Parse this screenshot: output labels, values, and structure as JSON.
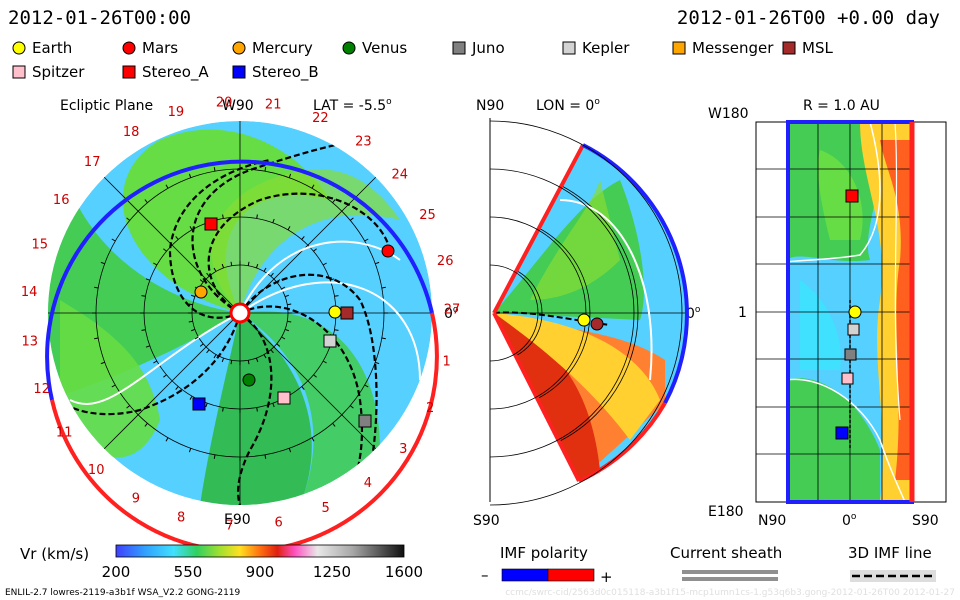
{
  "header": {
    "date_left": "2012-01-26T00:00",
    "date_right": "2012-01-26T00 +0.00 day"
  },
  "legend": [
    {
      "label": "Earth",
      "shape": "circle",
      "color": "#ffff00"
    },
    {
      "label": "Mars",
      "shape": "circle",
      "color": "#ff0000"
    },
    {
      "label": "Mercury",
      "shape": "circle",
      "color": "#ffa500"
    },
    {
      "label": "Venus",
      "shape": "circle",
      "color": "#008000"
    },
    {
      "label": "Juno",
      "shape": "square",
      "color": "#808080"
    },
    {
      "label": "Kepler",
      "shape": "square",
      "color": "#d3d3d3"
    },
    {
      "label": "Messenger",
      "shape": "square",
      "color": "#ffa500"
    },
    {
      "label": "MSL",
      "shape": "square",
      "color": "#a52a2a"
    },
    {
      "label": "Spitzer",
      "shape": "square",
      "color": "#ffc0cb"
    },
    {
      "label": "Stereo_A",
      "shape": "square",
      "color": "#ff0000"
    },
    {
      "label": "Stereo_B",
      "shape": "square",
      "color": "#0000ff"
    }
  ],
  "ecliptic": {
    "title": "Ecliptic Plane",
    "lat_label": "LAT = -5.5",
    "degree_mark": "o",
    "top_label": "W90",
    "bottom_label": "E90",
    "right_label": "0",
    "carrington_ticks": [
      "1",
      "2",
      "3",
      "4",
      "5",
      "6",
      "7",
      "8",
      "9",
      "10",
      "11",
      "12",
      "13",
      "14",
      "15",
      "16",
      "17",
      "18",
      "19",
      "20",
      "21",
      "22",
      "23",
      "24",
      "25",
      "26",
      "27"
    ]
  },
  "meridional": {
    "lon_label": "LON = 0",
    "degree_mark": "o",
    "top_label": "N90",
    "bottom_label": "S90",
    "right_label": "0"
  },
  "rectangular": {
    "r_label": "R = 1.0 AU",
    "top_left_label": "W180",
    "bottom_left_label": "E180",
    "mid_left_label": "1",
    "x_labels": [
      "N90",
      "0",
      "S90"
    ],
    "degree_mark": "o"
  },
  "colorbar": {
    "title": "Vr (km/s)",
    "ticks": [
      "200",
      "550",
      "900",
      "1250",
      "1600"
    ],
    "colors": [
      "#3030ff",
      "#30a0ff",
      "#40e0ff",
      "#30d060",
      "#a0e030",
      "#ffe020",
      "#ff8010",
      "#e02010",
      "#ff60c0",
      "#d0d0d0",
      "#a0a0a0",
      "#606060",
      "#202020"
    ]
  },
  "imf_polarity": {
    "title": "IMF polarity",
    "minus": "–",
    "plus": "+",
    "negative_color": "#0000ff",
    "positive_color": "#ff0000"
  },
  "current_sheath": {
    "title": "Current sheath"
  },
  "imf_line": {
    "title": "3D IMF line"
  },
  "footer": {
    "left_text": "ENLIL-2.7 lowres-2119-a3b1f WSA_V2.2 GONG-2119",
    "right_text": "ccmc/swrc-cid/2563d0c015118-a3b1f15-mcp1umn1cs-1.g53q6b3.gong-2012-01-26T00   2012-01-27"
  },
  "colors": {
    "imf_negative": "#1010ff",
    "imf_positive": "#ff1010",
    "solar_wind_slow": "#33cc66",
    "solar_wind_background": "#55ccff"
  }
}
